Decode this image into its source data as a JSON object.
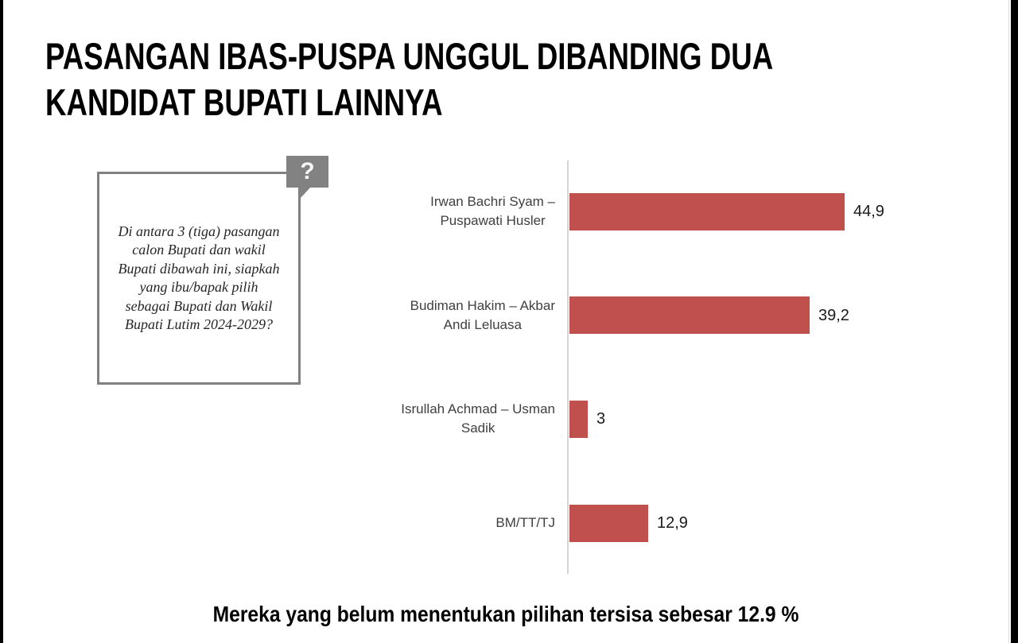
{
  "title": "PASANGAN IBAS-PUSPA UNGGUL DIBANDING DUA\nKANDIDAT BUPATI LAINNYA",
  "question_box": {
    "badge_glyph": "?",
    "text": "Di antara 3 (tiga) pasangan\ncalon Bupati dan wakil\nBupati dibawah ini, siapkah\nyang ibu/bapak pilih\nsebagai Bupati dan Wakil\nBupati Lutim 2024-2029?"
  },
  "footer": {
    "text": "Mereka yang belum menentukan pilihan tersisa sebesar 12.9 %"
  },
  "chart_data": {
    "type": "bar",
    "orientation": "horizontal",
    "title": "",
    "xlabel": "",
    "ylabel": "",
    "categories": [
      "Irwan Bachri Syam –\nPuspawati Husler",
      "Budiman Hakim – Akbar\nAndi Leluasa",
      "Isrullah Achmad – Usman\nSadik",
      "BM/TT/TJ"
    ],
    "values": [
      44.9,
      39.2,
      3,
      12.9
    ],
    "value_labels": [
      "44,9",
      "39,2",
      "3",
      "12,9"
    ],
    "xlim": [
      0,
      58
    ],
    "grid": false,
    "legend": false,
    "data_labels": "outside-end",
    "colors": {
      "bar": "#C0504D",
      "axis_line": "#d5d5d5",
      "category_text": "#3f3f3f",
      "value_text": "#1a1a1a"
    }
  }
}
